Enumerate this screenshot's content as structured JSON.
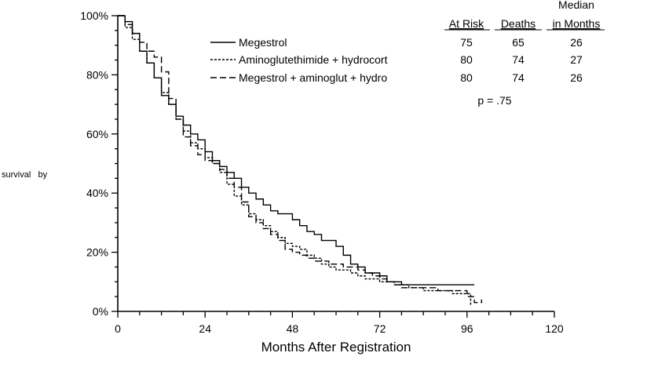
{
  "chart_data": {
    "type": "line",
    "title": "",
    "xlabel": "Months After Registration",
    "ylabel": "",
    "xlim": [
      0,
      120
    ],
    "ylim": [
      0,
      100
    ],
    "x_ticks": [
      0,
      24,
      48,
      72,
      96,
      120
    ],
    "y_ticks": [
      0,
      20,
      40,
      60,
      80,
      100
    ],
    "x_tick_labels": [
      "0",
      "24",
      "48",
      "72",
      "96",
      "120"
    ],
    "y_tick_labels": [
      "0%",
      "20%",
      "40%",
      "60%",
      "80%",
      "100%"
    ],
    "grid": false,
    "legend_position": "top-right",
    "side_label": "survival   by",
    "series": [
      {
        "name": "Megestrol",
        "style": "solid",
        "x": [
          0,
          2,
          4,
          6,
          8,
          10,
          12,
          14,
          16,
          18,
          20,
          22,
          24,
          26,
          28,
          30,
          32,
          34,
          36,
          38,
          40,
          42,
          44,
          46,
          48,
          50,
          52,
          54,
          56,
          58,
          60,
          62,
          64,
          66,
          68,
          70,
          72,
          74,
          76,
          78,
          80,
          84,
          88,
          92,
          96,
          98
        ],
        "y": [
          100,
          98,
          94,
          88,
          84,
          79,
          73,
          70,
          66,
          63,
          60,
          58,
          54,
          51,
          49,
          47,
          45,
          42,
          40,
          38,
          36,
          34,
          33,
          33,
          31,
          29,
          27,
          26,
          24,
          24,
          22,
          19,
          16,
          15,
          13,
          13,
          12,
          10,
          10,
          9,
          9,
          9,
          9,
          9,
          9,
          9
        ]
      },
      {
        "name": "Aminoglutethimide + hydrocort",
        "style": "dotted",
        "x": [
          0,
          2,
          4,
          6,
          8,
          10,
          12,
          14,
          16,
          18,
          20,
          22,
          24,
          26,
          28,
          30,
          32,
          34,
          36,
          38,
          40,
          42,
          44,
          46,
          48,
          50,
          52,
          54,
          56,
          58,
          60,
          62,
          64,
          66,
          68,
          70,
          72,
          74,
          76,
          78,
          80,
          84,
          88,
          92,
          96,
          97
        ],
        "y": [
          100,
          96,
          92,
          88,
          84,
          79,
          74,
          70,
          65,
          61,
          57,
          55,
          52,
          50,
          47,
          43,
          39,
          36,
          33,
          31,
          29,
          27,
          25,
          23,
          22,
          21,
          19,
          18,
          16,
          15,
          14,
          14,
          13,
          12,
          11,
          11,
          10,
          10,
          9,
          9,
          8,
          7,
          7,
          6,
          6,
          2
        ]
      },
      {
        "name": "Megestrol + aminoglut + hydro",
        "style": "dashed",
        "x": [
          0,
          2,
          4,
          6,
          8,
          10,
          12,
          14,
          16,
          18,
          20,
          22,
          24,
          26,
          28,
          30,
          32,
          34,
          36,
          38,
          40,
          42,
          44,
          46,
          48,
          50,
          52,
          54,
          56,
          58,
          60,
          62,
          64,
          66,
          68,
          70,
          72,
          74,
          76,
          78,
          80,
          84,
          88,
          92,
          96,
          98,
          100
        ],
        "y": [
          100,
          97,
          94,
          91,
          88,
          86,
          81,
          72,
          65,
          59,
          56,
          53,
          51,
          50,
          48,
          45,
          42,
          37,
          32,
          30,
          28,
          26,
          24,
          21,
          20,
          19,
          18,
          17,
          17,
          16,
          16,
          15,
          15,
          14,
          13,
          12,
          11,
          10,
          9,
          8,
          8,
          8,
          7,
          7,
          5,
          3,
          4
        ]
      }
    ],
    "table": {
      "header_top": "Median",
      "columns": [
        "At Risk",
        "Deaths",
        "in Months"
      ],
      "rows": [
        [
          "75",
          "65",
          "26"
        ],
        [
          "80",
          "74",
          "27"
        ],
        [
          "80",
          "74",
          "26"
        ]
      ],
      "p_value": "p = .75"
    }
  }
}
